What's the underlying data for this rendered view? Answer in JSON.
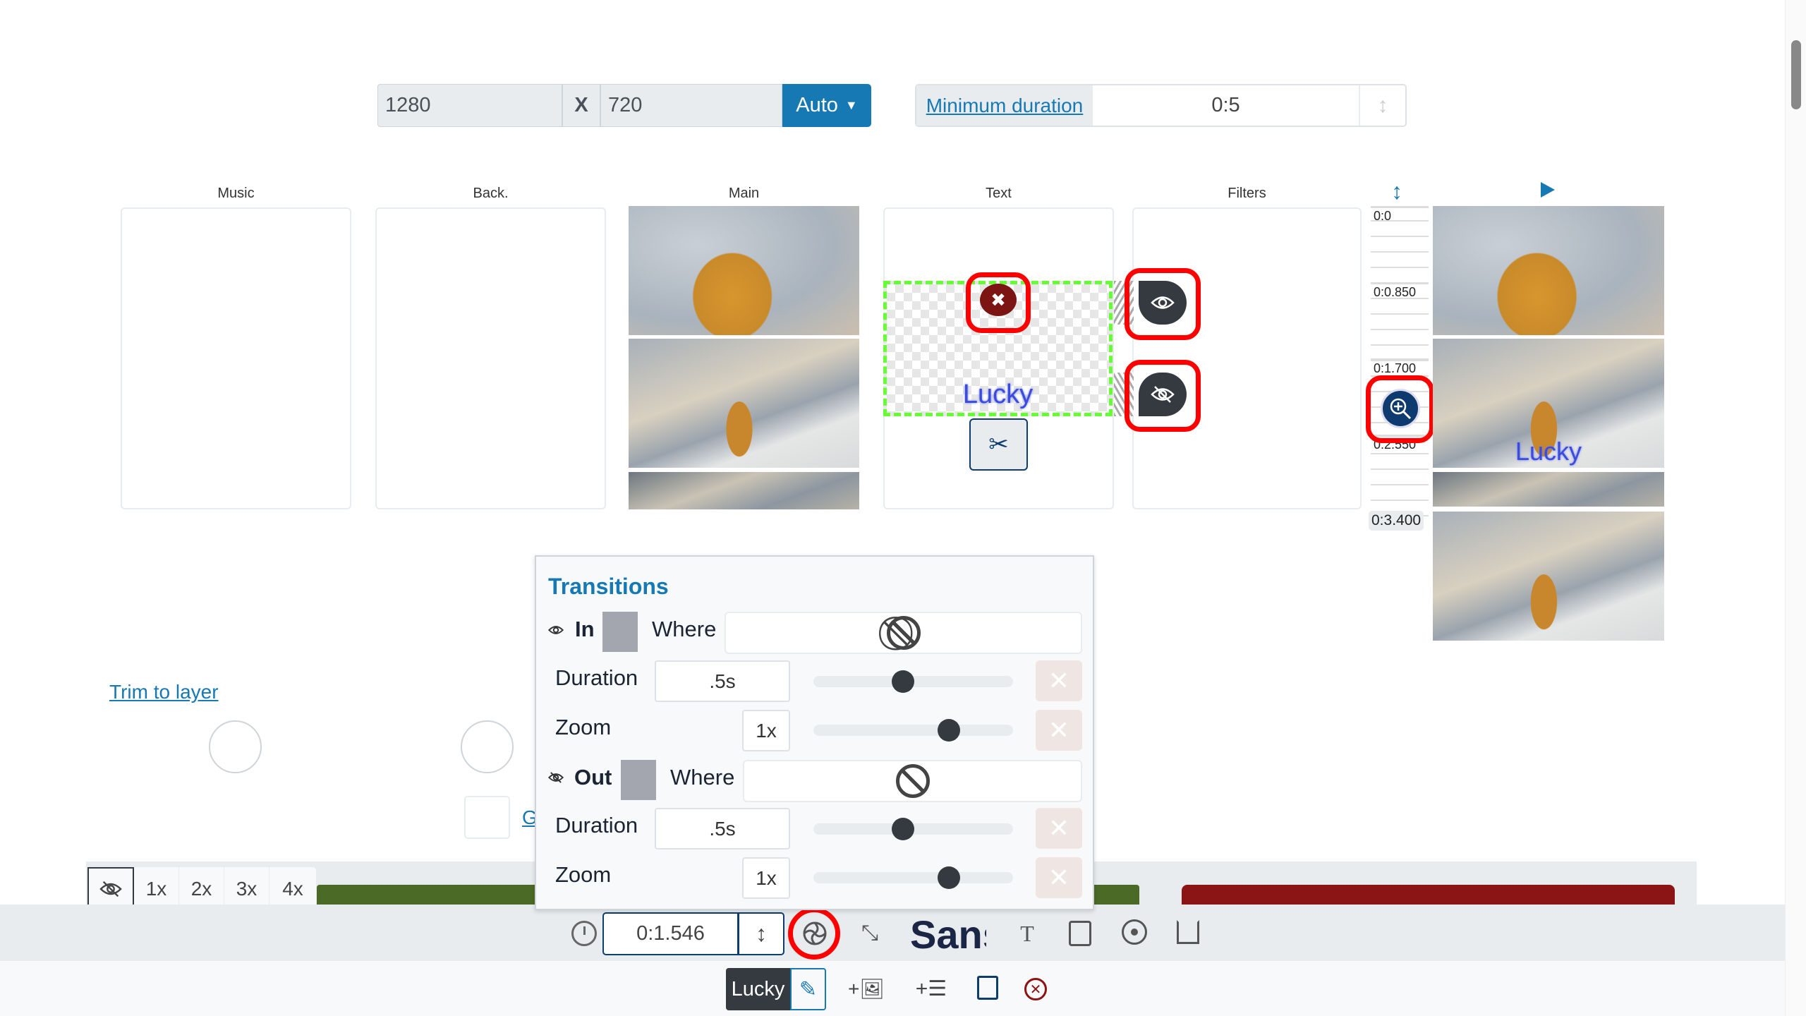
{
  "size": {
    "width": "1280",
    "separator": "X",
    "height": "720",
    "mode_label": "Auto"
  },
  "min_duration": {
    "label": "Minimum duration",
    "value": "0:5"
  },
  "columns": [
    {
      "label": "Music"
    },
    {
      "label": "Back."
    },
    {
      "label": "Main"
    },
    {
      "label": "Text"
    },
    {
      "label": "Filters"
    }
  ],
  "text_layer": {
    "text": "Lucky",
    "text_color": "#3b4bdc",
    "selection_color": "#66ff33"
  },
  "ruler": {
    "ticks": [
      "0:0",
      "0:0.850",
      "0:1.700",
      "0:2.550",
      "0:3.400"
    ]
  },
  "preview": {
    "overlay_text": "Lucky"
  },
  "left_panel": {
    "trim_link": "Trim to layer",
    "g_link": "G"
  },
  "transitions": {
    "title": "Transitions",
    "in": {
      "label": "In",
      "where_label": "Where",
      "duration_label": "Duration",
      "duration_value": ".5s",
      "duration_fraction": 0.45,
      "zoom_label": "Zoom",
      "zoom_value": "1x",
      "zoom_fraction": 0.68
    },
    "out": {
      "label": "Out",
      "where_label": "Where",
      "duration_label": "Duration",
      "duration_value": ".5s",
      "duration_fraction": 0.45,
      "zoom_label": "Zoom",
      "zoom_value": "1x",
      "zoom_fraction": 0.68
    }
  },
  "zoom_levels": [
    "1x",
    "2x",
    "3x",
    "4x"
  ],
  "toolbar": {
    "time_value": "0:1.546",
    "font_preview": "Sans"
  },
  "layer_bar": {
    "name": "Lucky"
  },
  "colors": {
    "accent": "#1779b4",
    "dark": "#343a40",
    "danger": "#7d1414",
    "green_track": "#4a6a26",
    "red_track": "#8b1414",
    "highlight": "#ff0000"
  }
}
